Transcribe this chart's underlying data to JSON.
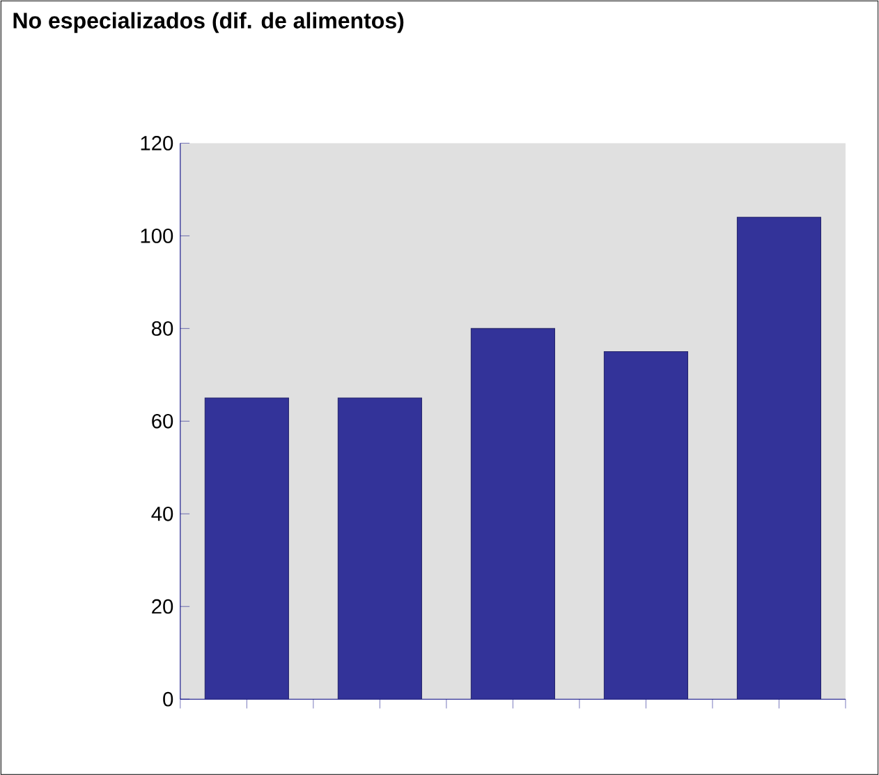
{
  "chart_data": {
    "type": "bar",
    "title": "No especializados (dif. de alimentos)",
    "categories": [
      null,
      null,
      null,
      null,
      null
    ],
    "values": [
      65,
      65,
      80,
      75,
      104
    ],
    "color": "#333399",
    "ylim": [
      0,
      120
    ],
    "yticks": [
      0,
      20,
      40,
      60,
      80,
      100,
      120
    ],
    "grid": false
  }
}
